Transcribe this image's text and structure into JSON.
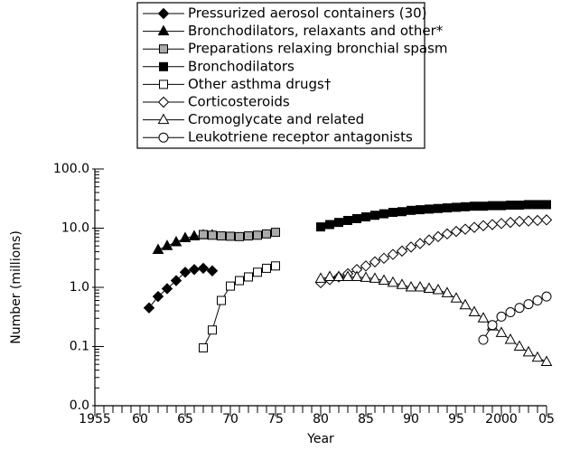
{
  "chart_data": {
    "type": "line",
    "x_label": "Year",
    "y_label": "Number (millions)",
    "log_y": true,
    "xlim": [
      1955,
      2005
    ],
    "xticks": [
      1955,
      {
        "value": 1960,
        "label": "60"
      },
      {
        "value": 1965,
        "label": "65"
      },
      {
        "value": 1970,
        "label": "70"
      },
      {
        "value": 1975,
        "label": "75"
      },
      {
        "value": 1980,
        "label": "80"
      },
      {
        "value": 1985,
        "label": "85"
      },
      {
        "value": 1990,
        "label": "90"
      },
      {
        "value": 1995,
        "label": "95"
      },
      2000,
      {
        "value": 2005,
        "label": "05"
      }
    ],
    "ylim": [
      0.01,
      100
    ],
    "yticks": [
      {
        "value": 0.01,
        "label": "0.0"
      },
      0.1,
      {
        "value": 1,
        "label": "1.0"
      },
      {
        "value": 10,
        "label": "10.0"
      },
      {
        "value": 100,
        "label": "100.0"
      }
    ],
    "series": [
      {
        "name": "Pressurized aerosol containers (30)",
        "color": "#000000",
        "marker": "diamond",
        "fill": "#000000",
        "x": [
          1961,
          1962,
          1963,
          1964,
          1965,
          1966,
          1967,
          1968
        ],
        "values": [
          0.45,
          0.7,
          0.95,
          1.3,
          1.8,
          2.0,
          2.1,
          1.9
        ]
      },
      {
        "name": "Bronchodilators, relaxants and other*",
        "color": "#000000",
        "marker": "triangle",
        "fill": "#000000",
        "x": [
          1962,
          1963,
          1964,
          1965,
          1966,
          1967,
          1968
        ],
        "values": [
          4.3,
          5.0,
          5.8,
          6.8,
          7.3,
          7.6,
          7.6
        ]
      },
      {
        "name": "Preparations relaxing bronchial spasm",
        "color": "#000000",
        "marker": "square",
        "fill": "#aaaaaa",
        "x": [
          1967,
          1968,
          1969,
          1970,
          1971,
          1972,
          1973,
          1974,
          1975
        ],
        "values": [
          7.8,
          7.6,
          7.4,
          7.3,
          7.2,
          7.4,
          7.6,
          8.0,
          8.5
        ]
      },
      {
        "name": "Bronchodilators",
        "color": "#000000",
        "marker": "square",
        "fill": "#000000",
        "x": [
          1980,
          1981,
          1982,
          1983,
          1984,
          1985,
          1986,
          1987,
          1988,
          1989,
          1990,
          1991,
          1992,
          1993,
          1994,
          1995,
          1996,
          1997,
          1998,
          1999,
          2000,
          2001,
          2002,
          2003,
          2004,
          2005
        ],
        "values": [
          10.5,
          11.5,
          12.5,
          13.5,
          14.5,
          15.5,
          16.5,
          17.5,
          18.5,
          19,
          20,
          20.5,
          21,
          21.5,
          22,
          22.5,
          23,
          23.5,
          23.5,
          24,
          24,
          24.5,
          24.5,
          25,
          25,
          25
        ]
      },
      {
        "name": "Other asthma drugs†",
        "color": "#000000",
        "marker": "square",
        "fill": "#ffffff",
        "x": [
          1967,
          1968,
          1969,
          1970,
          1971,
          1972,
          1973,
          1974,
          1975
        ],
        "values": [
          0.095,
          0.19,
          0.6,
          1.05,
          1.3,
          1.5,
          1.8,
          2.1,
          2.3
        ]
      },
      {
        "name": "Corticosteroids",
        "color": "#000000",
        "marker": "diamond",
        "fill": "#ffffff",
        "x": [
          1980,
          1981,
          1982,
          1983,
          1984,
          1985,
          1986,
          1987,
          1988,
          1989,
          1990,
          1991,
          1992,
          1993,
          1994,
          1995,
          1996,
          1997,
          1998,
          1999,
          2000,
          2001,
          2002,
          2003,
          2004,
          2005
        ],
        "values": [
          1.2,
          1.35,
          1.5,
          1.7,
          2.0,
          2.3,
          2.7,
          3.1,
          3.6,
          4.1,
          4.8,
          5.5,
          6.3,
          7.2,
          8.0,
          8.8,
          9.6,
          10.3,
          11,
          11.5,
          12,
          12.5,
          13,
          13.2,
          13.5,
          13.8
        ]
      },
      {
        "name": "Cromoglycate and related",
        "color": "#000000",
        "marker": "triangle",
        "fill": "#ffffff",
        "x": [
          1980,
          1981,
          1982,
          1983,
          1984,
          1985,
          1986,
          1987,
          1988,
          1989,
          1990,
          1991,
          1992,
          1993,
          1994,
          1995,
          1996,
          1997,
          1998,
          1999,
          2000,
          2001,
          2002,
          2003,
          2004,
          2005
        ],
        "values": [
          1.4,
          1.5,
          1.5,
          1.5,
          1.5,
          1.45,
          1.4,
          1.3,
          1.2,
          1.1,
          1.0,
          1.0,
          0.95,
          0.9,
          0.8,
          0.65,
          0.5,
          0.38,
          0.3,
          0.22,
          0.17,
          0.13,
          0.1,
          0.08,
          0.065,
          0.055
        ]
      },
      {
        "name": "Leukotriene receptor antagonists",
        "color": "#000000",
        "marker": "circle",
        "fill": "#ffffff",
        "x": [
          1998,
          1999,
          2000,
          2001,
          2002,
          2003,
          2004,
          2005
        ],
        "values": [
          0.13,
          0.23,
          0.32,
          0.38,
          0.45,
          0.52,
          0.6,
          0.7
        ]
      }
    ]
  }
}
